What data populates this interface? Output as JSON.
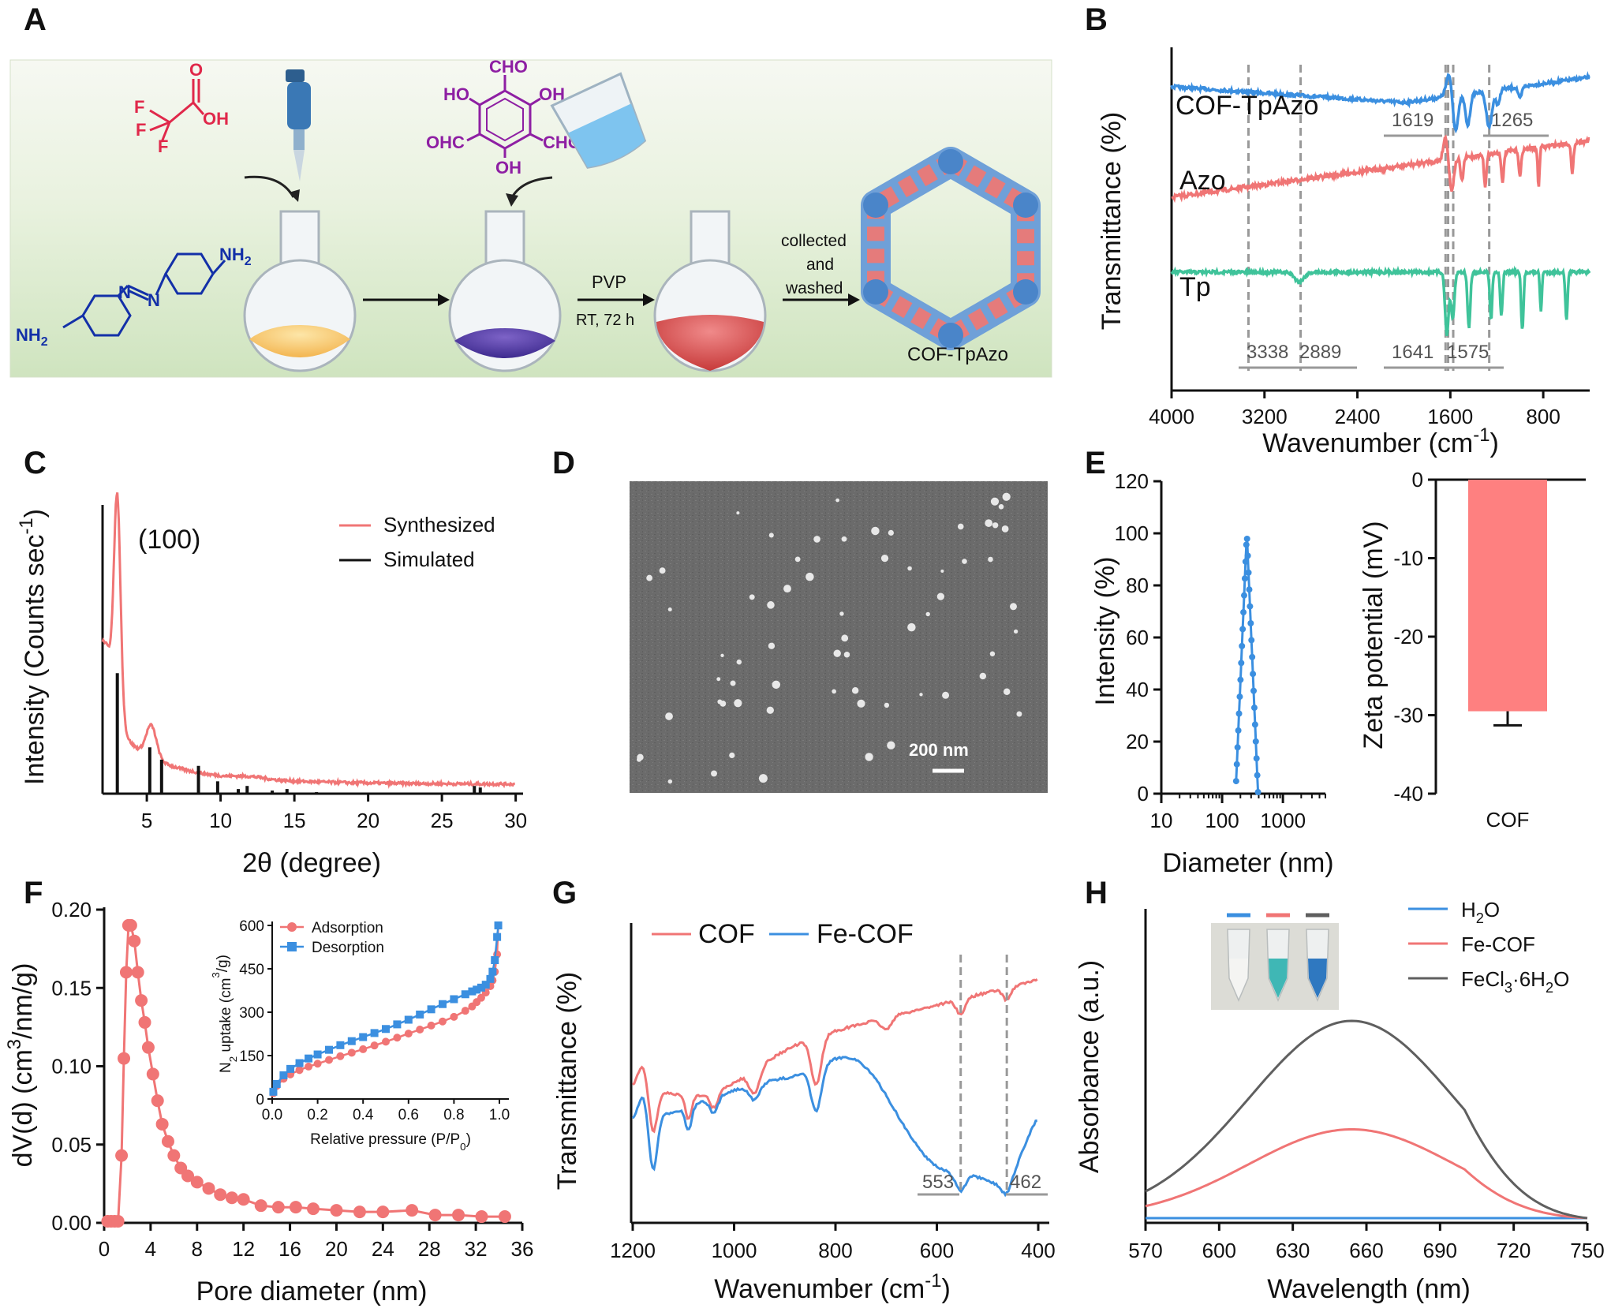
{
  "panels": {
    "A": "A",
    "B": "B",
    "C": "C",
    "D": "D",
    "E": "E",
    "F": "F",
    "G": "G",
    "H": "H"
  },
  "colors": {
    "blue": "#3b8fe0",
    "red": "#f07575",
    "green": "#3fc39a",
    "gray": "#5f5f5f",
    "schemeBg": "#e4efd8"
  },
  "scheme": {
    "tfa_F1": "F",
    "tfa_F2": "F",
    "tfa_F3": "F",
    "tfa_O": "O",
    "tfa_OH": "OH",
    "tp_CHO_top": "CHO",
    "tp_HO_left": "HO",
    "tp_OH_right": "OH",
    "tp_OHC": "OHC",
    "tp_CHO_right": "CHO",
    "tp_OH_bottom": "OH",
    "azo_NH2_top": "NH",
    "azo_NH2_top_sub": "2",
    "azo_NH2_bottom": "NH",
    "azo_NH2_bottom_sub": "2",
    "azo_N1": "N",
    "azo_N2": "N",
    "step_pvp": "PVP",
    "step_rt": "RT, 72 h",
    "step_collected": "collected",
    "step_and": "and",
    "step_washed": "washed",
    "product_label": "COF-TpAzo",
    "sem_scalebar": "200 nm"
  },
  "chart_data": [
    {
      "panel": "B",
      "type": "line",
      "xlabel": "Wavenumber (cm",
      "xlabel_sup": "-1",
      "xlabel_end": ")",
      "ylabel": "Transmittance (%)",
      "xlim": [
        4000,
        400
      ],
      "xticks": [
        "4000",
        "3200",
        "2400",
        "1600",
        "800"
      ],
      "series": [
        {
          "name": "COF-TpAzo",
          "color": "#3b8fe0"
        },
        {
          "name": "Azo",
          "color": "#f07575"
        },
        {
          "name": "Tp",
          "color": "#3fc39a"
        }
      ],
      "annotations": [
        "1619",
        "1265",
        "3338",
        "2889",
        "1641",
        "1575"
      ]
    },
    {
      "panel": "C",
      "type": "line",
      "xlabel": "2θ (degree)",
      "ylabel": "Intensity (Counts sec",
      "ylabel_sup": "-1",
      "ylabel_end": ")",
      "xlim": [
        2,
        30
      ],
      "xticks": [
        "5",
        "10",
        "15",
        "20",
        "25",
        "30"
      ],
      "peak_label": "(100)",
      "series": [
        {
          "name": "Synthesized",
          "color": "#f07575"
        },
        {
          "name": "Simulated",
          "color": "#111111"
        }
      ],
      "simulated_sticks": [
        {
          "x": 3.0,
          "h": 0.78
        },
        {
          "x": 5.2,
          "h": 0.3
        },
        {
          "x": 6.0,
          "h": 0.22
        },
        {
          "x": 8.5,
          "h": 0.18
        },
        {
          "x": 9.8,
          "h": 0.08
        },
        {
          "x": 11.2,
          "h": 0.03
        },
        {
          "x": 11.8,
          "h": 0.05
        },
        {
          "x": 13.5,
          "h": 0.02
        },
        {
          "x": 14.5,
          "h": 0.03
        },
        {
          "x": 16.5,
          "h": 0.01
        },
        {
          "x": 27.2,
          "h": 0.05
        },
        {
          "x": 27.6,
          "h": 0.04
        }
      ]
    },
    {
      "panel": "E1",
      "type": "line",
      "xlabel": "Diameter (nm)",
      "ylabel": "Intensity (%)",
      "xscale": "log",
      "xlim": [
        10,
        5000
      ],
      "ylim": [
        0,
        120
      ],
      "xticks": [
        "10",
        "100",
        "1000"
      ],
      "yticks": [
        "0",
        "20",
        "40",
        "60",
        "80",
        "100",
        "120"
      ],
      "series": [
        {
          "name": "",
          "color": "#3b8fe0",
          "peak_x": 255,
          "peak_y": 100
        }
      ]
    },
    {
      "panel": "E2",
      "type": "bar",
      "ylabel": "Zeta potential (mV)",
      "ylim": [
        -40,
        0
      ],
      "yticks": [
        "0",
        "-10",
        "-20",
        "-30",
        "-40"
      ],
      "categories": [
        "COF"
      ],
      "values": [
        -29.5
      ],
      "error": [
        1.8
      ],
      "color": "#fe8080"
    },
    {
      "panel": "F",
      "type": "scatter",
      "xlabel": "Pore diameter (nm)",
      "ylabel": "dV(d) (cm",
      "ylabel_sup": "3",
      "ylabel_end": "/nm/g)",
      "xlim": [
        0,
        36
      ],
      "ylim": [
        0,
        0.2
      ],
      "xticks": [
        "0",
        "4",
        "8",
        "12",
        "16",
        "20",
        "24",
        "28",
        "32",
        "36"
      ],
      "yticks": [
        "0.00",
        "0.05",
        "0.10",
        "0.15",
        "0.20"
      ],
      "x": [
        0.3,
        0.6,
        0.9,
        1.2,
        1.5,
        1.7,
        1.9,
        2.1,
        2.3,
        2.6,
        2.9,
        3.2,
        3.5,
        3.8,
        4.2,
        4.6,
        5.0,
        5.5,
        6.0,
        6.6,
        7.2,
        8.0,
        9.0,
        10.0,
        11.0,
        12.0,
        13.5,
        15.0,
        16.5,
        18.0,
        20.0,
        22.0,
        24.0,
        26.5,
        28.5,
        30.5,
        32.5,
        34.5
      ],
      "y": [
        0.001,
        0.001,
        0.001,
        0.001,
        0.043,
        0.105,
        0.16,
        0.19,
        0.19,
        0.18,
        0.16,
        0.142,
        0.128,
        0.112,
        0.095,
        0.078,
        0.063,
        0.052,
        0.043,
        0.035,
        0.03,
        0.026,
        0.022,
        0.018,
        0.016,
        0.015,
        0.011,
        0.01,
        0.01,
        0.009,
        0.008,
        0.007,
        0.007,
        0.008,
        0.005,
        0.005,
        0.004,
        0.004
      ],
      "color": "#f07575",
      "inset": {
        "xlabel": "Relative pressure (P/P",
        "xlabel_sub": "0",
        "xlabel_end": ")",
        "ylabel": "N",
        "ylabel_sub": "2",
        "ylabel_end": " uptake (cm",
        "ylabel_sup": "3",
        "ylabel_tail": "/g)",
        "xlim": [
          0,
          1
        ],
        "ylim": [
          0,
          600
        ],
        "xticks": [
          "0.0",
          "0.2",
          "0.4",
          "0.6",
          "0.8",
          "1.0"
        ],
        "yticks": [
          "0",
          "150",
          "300",
          "450",
          "600"
        ],
        "series": [
          {
            "name": "Adsorption",
            "color": "#f07575",
            "marker": "circle",
            "x": [
              0.005,
              0.02,
              0.05,
              0.08,
              0.12,
              0.16,
              0.2,
              0.25,
              0.3,
              0.35,
              0.4,
              0.45,
              0.5,
              0.55,
              0.6,
              0.65,
              0.7,
              0.75,
              0.8,
              0.85,
              0.88,
              0.9,
              0.92,
              0.94,
              0.96,
              0.97,
              0.98,
              0.99,
              0.995
            ],
            "y": [
              20,
              45,
              70,
              85,
              100,
              112,
              122,
              135,
              148,
              160,
              172,
              185,
              198,
              212,
              226,
              240,
              254,
              268,
              284,
              305,
              320,
              335,
              350,
              368,
              390,
              410,
              440,
              500,
              600
            ]
          },
          {
            "name": "Desorption",
            "color": "#3b8fe0",
            "marker": "square",
            "x": [
              0.995,
              0.99,
              0.98,
              0.97,
              0.96,
              0.94,
              0.92,
              0.9,
              0.88,
              0.85,
              0.8,
              0.75,
              0.7,
              0.65,
              0.6,
              0.55,
              0.5,
              0.45,
              0.4,
              0.35,
              0.3,
              0.25,
              0.2,
              0.16,
              0.12,
              0.08,
              0.05,
              0.02,
              0.005
            ],
            "y": [
              600,
              560,
              480,
              440,
              415,
              395,
              385,
              378,
              372,
              362,
              345,
              328,
              310,
              292,
              274,
              258,
              242,
              228,
              214,
              200,
              186,
              170,
              154,
              140,
              124,
              104,
              82,
              52,
              25
            ]
          }
        ]
      }
    },
    {
      "panel": "G",
      "type": "line",
      "xlabel": "Wavenumber (cm",
      "xlabel_sup": "-1",
      "xlabel_end": ")",
      "ylabel": "Transmittance (%)",
      "xlim": [
        1200,
        400
      ],
      "xticks": [
        "1200",
        "1000",
        "800",
        "600",
        "400"
      ],
      "series": [
        {
          "name": "COF",
          "color": "#f07575"
        },
        {
          "name": "Fe-COF",
          "color": "#3b8fe0"
        }
      ],
      "annotations": [
        "553",
        "462"
      ]
    },
    {
      "panel": "H",
      "type": "line",
      "xlabel": "Wavelength (nm)",
      "ylabel": "Absorbance (a.u.)",
      "xlim": [
        570,
        750
      ],
      "xticks": [
        "570",
        "600",
        "630",
        "660",
        "690",
        "720",
        "750"
      ],
      "series": [
        {
          "name": "H",
          "name_sub": "2",
          "name_end": "O",
          "color": "#3b8fe0",
          "peak": 0.0
        },
        {
          "name": "Fe-COF",
          "color": "#f07575",
          "peak": 0.45
        },
        {
          "name": "FeCl",
          "name_sub": "3",
          "name_end": "·6H",
          "name_sub2": "2",
          "name_end2": "O",
          "color": "#5f5f5f",
          "peak": 1.0
        }
      ],
      "peak_x": 654
    }
  ]
}
